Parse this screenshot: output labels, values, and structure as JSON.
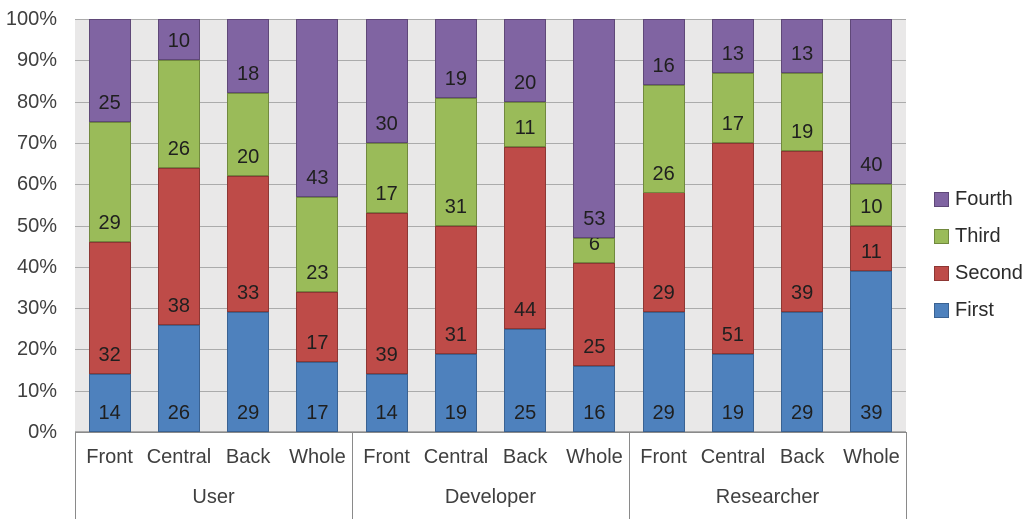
{
  "chart_data": {
    "type": "bar",
    "variant": "100%-stacked-column",
    "title": "",
    "xlabel": "",
    "ylabel": "",
    "ylim": [
      0,
      100
    ],
    "grid": true,
    "legend_position": "right",
    "y_ticks": [
      "100%",
      "90%",
      "80%",
      "70%",
      "60%",
      "50%",
      "40%",
      "30%",
      "20%",
      "10%",
      "0%"
    ],
    "group_labels": [
      "User",
      "Developer",
      "Researcher"
    ],
    "categories": [
      "Front",
      "Central",
      "Back",
      "Whole",
      "Front",
      "Central",
      "Back",
      "Whole",
      "Front",
      "Central",
      "Back",
      "Whole"
    ],
    "series": [
      {
        "name": "First",
        "color": "#4e81bd",
        "border": "#3a6292",
        "values": [
          14,
          26,
          29,
          17,
          14,
          19,
          25,
          16,
          29,
          19,
          29,
          39
        ]
      },
      {
        "name": "Second",
        "color": "#be4b48",
        "border": "#8d3734",
        "values": [
          32,
          38,
          33,
          17,
          39,
          31,
          44,
          25,
          29,
          51,
          39,
          11
        ]
      },
      {
        "name": "Third",
        "color": "#9abb59",
        "border": "#71893e",
        "values": [
          29,
          26,
          20,
          23,
          17,
          31,
          11,
          6,
          26,
          17,
          19,
          10
        ]
      },
      {
        "name": "Fourth",
        "color": "#8064a2",
        "border": "#5f4878",
        "values": [
          25,
          10,
          18,
          43,
          30,
          19,
          20,
          53,
          16,
          13,
          13,
          40
        ]
      }
    ],
    "legend_order": [
      "Fourth",
      "Third",
      "Second",
      "First"
    ],
    "colors": {
      "plot_background": "#e9e8e8",
      "gridline": "#ababab",
      "axis_line": "#8a8a8a",
      "tick_text": "#3f3f3f",
      "data_label_text": "#1f1f1f"
    }
  }
}
